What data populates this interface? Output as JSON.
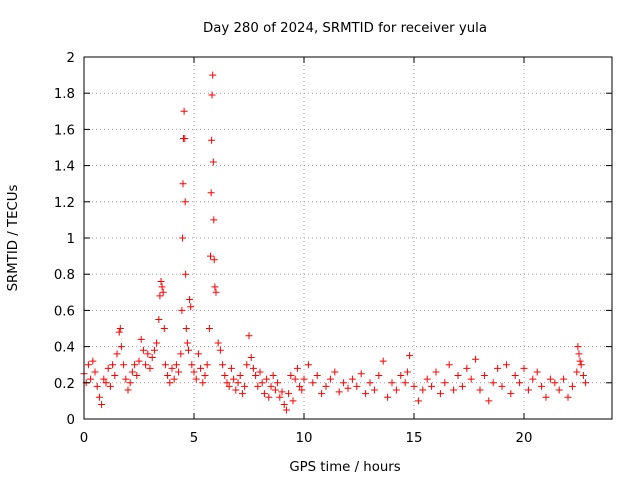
{
  "chart_data": {
    "type": "scatter",
    "title": "Day 280 of 2024, SRMTID for receiver yula",
    "xlabel": "GPS time / hours",
    "ylabel": "SRMTID / TECUs",
    "xlim": [
      0,
      24
    ],
    "ylim": [
      0,
      2
    ],
    "x_ticks": [
      0,
      5,
      10,
      15,
      20
    ],
    "x_tick_labels": [
      "0",
      "5",
      "10",
      "15",
      "20"
    ],
    "y_ticks": [
      0,
      0.2,
      0.4,
      0.6,
      0.8,
      1,
      1.2,
      1.4,
      1.6,
      1.8,
      2
    ],
    "y_tick_labels": [
      "0",
      "0.2",
      "0.4",
      "0.6",
      "0.8",
      "1",
      "1.2",
      "1.4",
      "1.6",
      "1.8",
      "2"
    ],
    "grid": true,
    "marker": "+",
    "marker_color": "#ff0000",
    "series": [
      {
        "name": "SRMTID",
        "x": [
          0.0,
          0.1,
          0.2,
          0.3,
          0.4,
          0.5,
          0.6,
          0.7,
          0.8,
          0.9,
          1.0,
          1.1,
          1.2,
          1.3,
          1.4,
          1.5,
          1.6,
          1.65,
          1.7,
          1.8,
          1.9,
          2.0,
          2.1,
          2.2,
          2.3,
          2.4,
          2.5,
          2.6,
          2.7,
          2.8,
          2.9,
          3.0,
          3.1,
          3.2,
          3.3,
          3.4,
          3.45,
          3.5,
          3.55,
          3.6,
          3.65,
          3.7,
          3.8,
          3.9,
          4.0,
          4.1,
          4.2,
          4.3,
          4.4,
          4.45,
          4.48,
          4.5,
          4.52,
          4.55,
          4.58,
          4.6,
          4.62,
          4.65,
          4.7,
          4.75,
          4.8,
          4.85,
          4.9,
          5.0,
          5.1,
          5.2,
          5.3,
          5.4,
          5.5,
          5.6,
          5.7,
          5.75,
          5.78,
          5.8,
          5.82,
          5.85,
          5.88,
          5.9,
          5.92,
          5.95,
          6.0,
          6.1,
          6.2,
          6.3,
          6.4,
          6.5,
          6.6,
          6.7,
          6.8,
          6.9,
          7.0,
          7.1,
          7.2,
          7.3,
          7.4,
          7.5,
          7.6,
          7.7,
          7.8,
          7.9,
          8.0,
          8.1,
          8.2,
          8.3,
          8.4,
          8.5,
          8.6,
          8.7,
          8.8,
          8.9,
          9.0,
          9.1,
          9.2,
          9.3,
          9.4,
          9.5,
          9.6,
          9.7,
          9.8,
          9.9,
          10.0,
          10.2,
          10.4,
          10.6,
          10.8,
          11.0,
          11.2,
          11.4,
          11.6,
          11.8,
          12.0,
          12.2,
          12.4,
          12.6,
          12.8,
          13.0,
          13.2,
          13.4,
          13.6,
          13.8,
          14.0,
          14.2,
          14.4,
          14.6,
          14.7,
          14.8,
          15.0,
          15.2,
          15.4,
          15.6,
          15.8,
          16.0,
          16.2,
          16.4,
          16.6,
          16.8,
          17.0,
          17.2,
          17.4,
          17.6,
          17.8,
          18.0,
          18.2,
          18.4,
          18.6,
          18.8,
          19.0,
          19.2,
          19.4,
          19.6,
          19.8,
          20.0,
          20.2,
          20.4,
          20.6,
          20.8,
          21.0,
          21.2,
          21.4,
          21.6,
          21.8,
          22.0,
          22.2,
          22.4,
          22.45,
          22.5,
          22.55,
          22.6,
          22.7,
          22.8
        ],
        "y": [
          0.25,
          0.2,
          0.3,
          0.22,
          0.32,
          0.26,
          0.18,
          0.12,
          0.08,
          0.22,
          0.2,
          0.28,
          0.18,
          0.3,
          0.24,
          0.36,
          0.48,
          0.5,
          0.4,
          0.3,
          0.22,
          0.16,
          0.2,
          0.26,
          0.3,
          0.24,
          0.32,
          0.44,
          0.38,
          0.3,
          0.36,
          0.28,
          0.34,
          0.38,
          0.42,
          0.55,
          0.68,
          0.76,
          0.73,
          0.7,
          0.5,
          0.3,
          0.24,
          0.2,
          0.28,
          0.22,
          0.3,
          0.26,
          0.36,
          0.6,
          1.0,
          1.3,
          1.55,
          1.7,
          1.55,
          1.2,
          0.8,
          0.5,
          0.42,
          0.38,
          0.66,
          0.62,
          0.3,
          0.26,
          0.22,
          0.36,
          0.28,
          0.2,
          0.24,
          0.3,
          0.5,
          0.9,
          1.25,
          1.54,
          1.79,
          1.9,
          1.42,
          1.1,
          0.88,
          0.73,
          0.7,
          0.42,
          0.38,
          0.3,
          0.24,
          0.2,
          0.18,
          0.28,
          0.22,
          0.16,
          0.2,
          0.24,
          0.14,
          0.18,
          0.3,
          0.46,
          0.34,
          0.28,
          0.24,
          0.18,
          0.26,
          0.2,
          0.14,
          0.22,
          0.12,
          0.18,
          0.24,
          0.16,
          0.2,
          0.12,
          0.15,
          0.08,
          0.05,
          0.14,
          0.24,
          0.1,
          0.22,
          0.28,
          0.18,
          0.16,
          0.22,
          0.3,
          0.2,
          0.24,
          0.14,
          0.18,
          0.22,
          0.26,
          0.15,
          0.2,
          0.17,
          0.22,
          0.18,
          0.25,
          0.14,
          0.2,
          0.16,
          0.24,
          0.32,
          0.12,
          0.2,
          0.16,
          0.24,
          0.2,
          0.26,
          0.35,
          0.18,
          0.1,
          0.16,
          0.22,
          0.18,
          0.26,
          0.14,
          0.2,
          0.3,
          0.16,
          0.24,
          0.18,
          0.28,
          0.22,
          0.33,
          0.16,
          0.24,
          0.1,
          0.2,
          0.28,
          0.18,
          0.3,
          0.14,
          0.24,
          0.2,
          0.28,
          0.16,
          0.22,
          0.26,
          0.18,
          0.12,
          0.22,
          0.2,
          0.16,
          0.22,
          0.12,
          0.18,
          0.26,
          0.4,
          0.36,
          0.32,
          0.3,
          0.24,
          0.2
        ]
      }
    ]
  }
}
